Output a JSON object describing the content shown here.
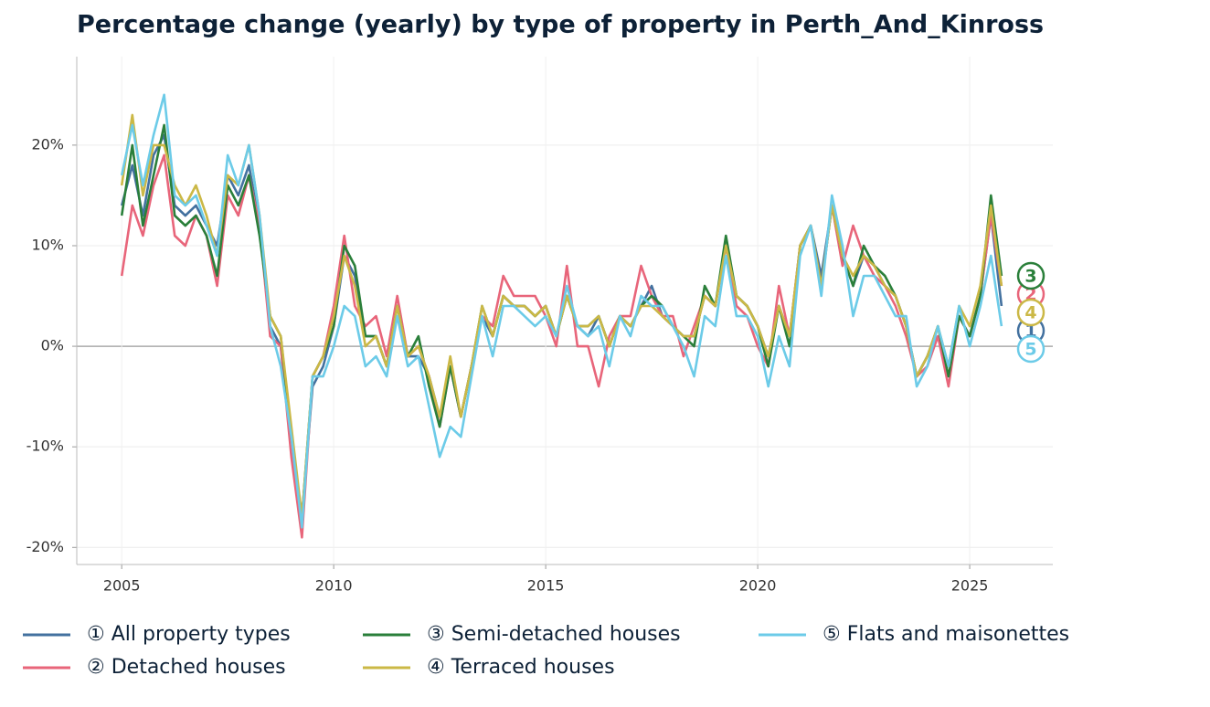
{
  "chart_data": {
    "type": "line",
    "title": "Percentage change (yearly) by type of property in Perth_And_Kinross",
    "x": [
      2005.0,
      2005.25,
      2005.5,
      2005.75,
      2006.0,
      2006.25,
      2006.5,
      2006.75,
      2007.0,
      2007.25,
      2007.5,
      2007.75,
      2008.0,
      2008.25,
      2008.5,
      2008.75,
      2009.0,
      2009.25,
      2009.5,
      2009.75,
      2010.0,
      2010.25,
      2010.5,
      2010.75,
      2011.0,
      2011.25,
      2011.5,
      2011.75,
      2012.0,
      2012.25,
      2012.5,
      2012.75,
      2013.0,
      2013.25,
      2013.5,
      2013.75,
      2014.0,
      2014.25,
      2014.5,
      2014.75,
      2015.0,
      2015.25,
      2015.5,
      2015.75,
      2016.0,
      2016.25,
      2016.5,
      2016.75,
      2017.0,
      2017.25,
      2017.5,
      2017.75,
      2018.0,
      2018.25,
      2018.5,
      2018.75,
      2019.0,
      2019.25,
      2019.5,
      2019.75,
      2020.0,
      2020.25,
      2020.5,
      2020.75,
      2021.0,
      2021.25,
      2021.5,
      2021.75,
      2022.0,
      2022.25,
      2022.5,
      2022.75,
      2023.0,
      2023.25,
      2023.5,
      2023.75,
      2024.0,
      2024.25,
      2024.5,
      2024.75,
      2025.0,
      2025.25,
      2025.5,
      2025.75
    ],
    "series": [
      {
        "name": "① All property types",
        "end_label": "1",
        "color": "#43719f",
        "values": [
          14,
          18,
          13,
          19,
          21,
          14,
          13,
          14,
          12,
          10,
          17,
          15,
          18,
          12,
          2,
          0,
          -10,
          -17,
          -4,
          -2,
          2,
          9,
          7,
          1,
          1,
          -2,
          4,
          -1,
          -1,
          -3,
          -7,
          -2,
          -7,
          -2,
          3,
          1,
          5,
          4,
          4,
          3,
          4,
          1,
          5,
          2,
          1,
          3,
          0,
          3,
          2,
          4,
          6,
          3,
          2,
          1,
          1,
          5,
          4,
          10,
          5,
          4,
          2,
          -1,
          4,
          1,
          10,
          12,
          7,
          14,
          9,
          6,
          9,
          8,
          6,
          5,
          2,
          -3,
          -1,
          1,
          -2,
          3,
          1,
          5,
          13,
          4
        ]
      },
      {
        "name": "② Detached houses",
        "end_label": "2",
        "color": "#e8657a",
        "values": [
          7,
          14,
          11,
          16,
          19,
          11,
          10,
          13,
          11,
          6,
          15,
          13,
          17,
          12,
          1,
          0,
          -11,
          -19,
          -3,
          -1,
          4,
          11,
          4,
          2,
          3,
          -1,
          5,
          -1,
          0,
          -3,
          -8,
          -2,
          -7,
          -2,
          3,
          2,
          7,
          5,
          5,
          5,
          3,
          0,
          8,
          0,
          0,
          -4,
          1,
          3,
          3,
          8,
          5,
          3,
          3,
          -1,
          2,
          5,
          4,
          10,
          4,
          3,
          0,
          -2,
          6,
          1,
          10,
          12,
          6,
          14,
          8,
          12,
          9,
          7,
          6,
          4,
          1,
          -3,
          -2,
          1,
          -4,
          3,
          1,
          5,
          13,
          6
        ]
      },
      {
        "name": "③ Semi-detached houses",
        "end_label": "3",
        "color": "#2a7f3a",
        "values": [
          13,
          20,
          12,
          17,
          22,
          13,
          12,
          13,
          11,
          7,
          16,
          14,
          17,
          11,
          3,
          1,
          -9,
          -17,
          -3,
          -1,
          2,
          10,
          8,
          1,
          1,
          -2,
          4,
          -1,
          1,
          -4,
          -8,
          -2,
          -7,
          -2,
          4,
          1,
          5,
          4,
          4,
          3,
          4,
          1,
          5,
          2,
          2,
          3,
          0,
          3,
          2,
          4,
          5,
          4,
          2,
          1,
          0,
          6,
          4,
          11,
          5,
          4,
          2,
          -2,
          4,
          0,
          10,
          12,
          6,
          14,
          9,
          6,
          10,
          8,
          7,
          5,
          2,
          -3,
          -1,
          2,
          -3,
          3,
          1,
          5,
          15,
          7
        ]
      },
      {
        "name": "④ Terraced houses",
        "end_label": "4",
        "color": "#cbb846",
        "values": [
          16,
          23,
          15,
          20,
          20,
          16,
          14,
          16,
          13,
          9,
          17,
          16,
          20,
          13,
          3,
          1,
          -8,
          -17,
          -3,
          -1,
          3,
          9,
          6,
          0,
          1,
          -2,
          4,
          -1,
          0,
          -3,
          -7,
          -1,
          -7,
          -2,
          4,
          1,
          5,
          4,
          4,
          3,
          4,
          1,
          5,
          2,
          2,
          3,
          0,
          3,
          2,
          4,
          4,
          3,
          2,
          1,
          1,
          5,
          4,
          10,
          5,
          4,
          2,
          -1,
          4,
          1,
          10,
          12,
          6,
          14,
          9,
          7,
          9,
          8,
          6,
          5,
          2,
          -3,
          -1,
          2,
          -2,
          4,
          2,
          6,
          14,
          6
        ]
      },
      {
        "name": "⑤ Flats and maisonettes",
        "end_label": "5",
        "color": "#6ccbe8",
        "values": [
          17,
          22,
          16,
          21,
          25,
          15,
          14,
          15,
          12,
          9,
          19,
          16,
          20,
          13,
          2,
          -2,
          -9,
          -18,
          -3,
          -3,
          0,
          4,
          3,
          -2,
          -1,
          -3,
          3,
          -2,
          -1,
          -6,
          -11,
          -8,
          -9,
          -3,
          3,
          -1,
          4,
          4,
          3,
          2,
          3,
          1,
          6,
          2,
          1,
          2,
          -2,
          3,
          1,
          5,
          4,
          4,
          2,
          0,
          -3,
          3,
          2,
          9,
          3,
          3,
          1,
          -4,
          1,
          -2,
          9,
          12,
          5,
          15,
          10,
          3,
          7,
          7,
          5,
          3,
          3,
          -4,
          -2,
          2,
          -2,
          4,
          0,
          4,
          9,
          2
        ]
      }
    ],
    "xlim": [
      2003.94,
      2026.96
    ],
    "ylim": [
      -21.7,
      28.8
    ],
    "xticks": [
      2005,
      2010,
      2015,
      2020,
      2025
    ],
    "yticks": [
      {
        "value": -20,
        "label": "-20%"
      },
      {
        "value": -10,
        "label": "-10%"
      },
      {
        "value": 0,
        "label": "0%"
      },
      {
        "value": 10,
        "label": "10%"
      },
      {
        "value": 20,
        "label": "20%"
      }
    ],
    "grid": true,
    "legend": "bottom"
  }
}
